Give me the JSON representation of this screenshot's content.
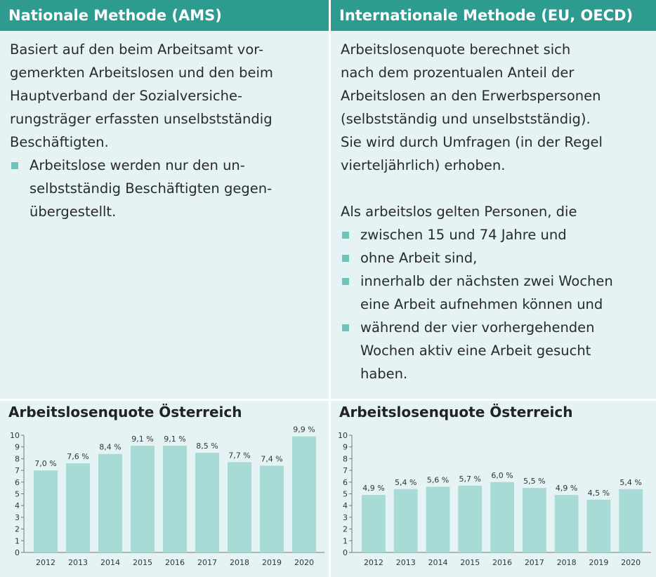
{
  "left": {
    "header": "Nationale Methode (AMS)",
    "paragraph": "Basiert auf den beim Arbeitsamt vor-\ngemerkten Arbeitslosen und den beim\nHauptverband der Sozialversiche-\nrungsträger erfassten unselbstständig\nBeschäftigten.",
    "bullets": [
      "Arbeitslose werden nur den un-\nselbstständig Beschäftigten gegen-\nübergestellt."
    ]
  },
  "right": {
    "header": "Internationale Methode (EU, OECD)",
    "paragraph": "Arbeitslosenquote berechnet sich\nnach dem prozentualen Anteil der\nArbeitslosen an den Erwerbspersonen\n(selbstständig und unselbstständig).\nSie wird durch Umfragen (in der Regel\nvierteljährlich) erhoben.",
    "intro": "Als arbeitslos gelten Personen, die",
    "bullets": [
      "zwischen 15 und 74 Jahre und",
      "ohne Arbeit sind,",
      "innerhalb der nächsten zwei Wochen\neine Arbeit aufnehmen können und",
      "während der vier vorhergehenden\nWochen aktiv eine Arbeit gesucht\nhaben."
    ]
  },
  "colors": {
    "header_bg": "#2e9b90",
    "panel_bg": "#e5f3f4",
    "bar": "#a8dbd5",
    "bullet": "#6fc3bb"
  },
  "chart_data": [
    {
      "type": "bar",
      "title": "Arbeitslosenquote Österreich",
      "categories": [
        "2012",
        "2013",
        "2014",
        "2015",
        "2016",
        "2017",
        "2018",
        "2019",
        "2020"
      ],
      "values": [
        7.0,
        7.6,
        8.4,
        9.1,
        9.1,
        8.5,
        7.7,
        7.4,
        9.9
      ],
      "value_labels": [
        "7,0 %",
        "7,6 %",
        "8,4 %",
        "9,1 %",
        "9,1 %",
        "8,5 %",
        "7,7 %",
        "7,4 %",
        "9,9 %"
      ],
      "yticks": [
        "0",
        "1",
        "2",
        "3",
        "4",
        "5",
        "6",
        "7",
        "8",
        "9",
        "10"
      ],
      "ylim": [
        0,
        10
      ],
      "xlabel": "",
      "ylabel": "",
      "grid": false
    },
    {
      "type": "bar",
      "title": "Arbeitslosenquote Österreich",
      "categories": [
        "2012",
        "2013",
        "2014",
        "2015",
        "2016",
        "2017",
        "2018",
        "2019",
        "2020"
      ],
      "values": [
        4.9,
        5.4,
        5.6,
        5.7,
        6.0,
        5.5,
        4.9,
        4.5,
        5.4
      ],
      "value_labels": [
        "4,9 %",
        "5,4 %",
        "5,6 %",
        "5,7 %",
        "6,0 %",
        "5,5 %",
        "4,9 %",
        "4,5 %",
        "5,4 %"
      ],
      "yticks": [
        "0",
        "1",
        "2",
        "3",
        "4",
        "5",
        "6",
        "7",
        "8",
        "9",
        "10"
      ],
      "ylim": [
        0,
        10
      ],
      "xlabel": "",
      "ylabel": "",
      "grid": false
    }
  ]
}
